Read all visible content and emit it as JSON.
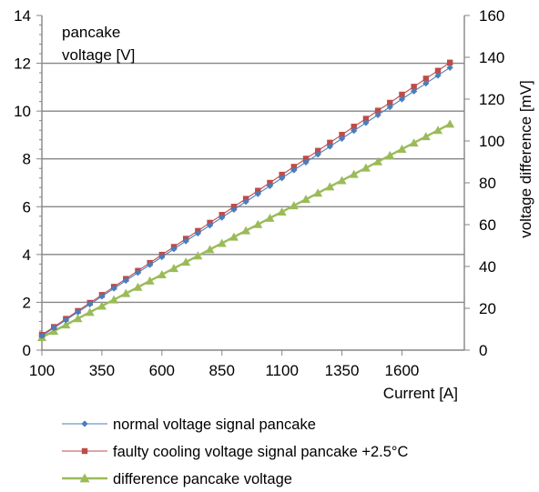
{
  "chart_data": {
    "type": "line",
    "x": [
      100,
      150,
      200,
      250,
      300,
      350,
      400,
      450,
      500,
      550,
      600,
      650,
      700,
      750,
      800,
      850,
      900,
      950,
      1000,
      1050,
      1100,
      1150,
      1200,
      1250,
      1300,
      1350,
      1400,
      1450,
      1500,
      1550,
      1600,
      1650,
      1700,
      1750,
      1800
    ],
    "ylabel_left_lines": [
      "pancake",
      "voltage [V]"
    ],
    "ylabel_right": "voltage difference [mV]",
    "xlabel": "Current [A]",
    "xlim": [
      100,
      1860
    ],
    "ylim_left": [
      0,
      14
    ],
    "ylim_right": [
      0,
      160
    ],
    "xticks": [
      "100",
      "350",
      "600",
      "850",
      "1100",
      "1350",
      "1600"
    ],
    "xtick_values": [
      100,
      350,
      600,
      850,
      1100,
      1350,
      1600
    ],
    "yticks_left": [
      "0",
      "2",
      "4",
      "6",
      "8",
      "10",
      "12",
      "14"
    ],
    "yticks_left_values": [
      0,
      2,
      4,
      6,
      8,
      10,
      12,
      14
    ],
    "yticks_right": [
      "0",
      "20",
      "40",
      "60",
      "80",
      "100",
      "120",
      "140",
      "160"
    ],
    "yticks_right_values": [
      0,
      20,
      40,
      60,
      80,
      100,
      120,
      140,
      160
    ],
    "grid": "horizontal",
    "legend_position": "bottom",
    "series": [
      {
        "name": "normal voltage signal pancake",
        "axis": "left",
        "color": "#4a7ebb",
        "marker": "diamond",
        "values": [
          0.6,
          0.93,
          1.26,
          1.59,
          1.92,
          2.25,
          2.58,
          2.91,
          3.24,
          3.57,
          3.9,
          4.23,
          4.56,
          4.89,
          5.22,
          5.55,
          5.88,
          6.21,
          6.54,
          6.87,
          7.2,
          7.53,
          7.86,
          8.19,
          8.52,
          8.85,
          9.18,
          9.51,
          9.84,
          10.17,
          10.5,
          10.83,
          11.16,
          11.49,
          11.82
        ]
      },
      {
        "name": "faulty cooling voltage signal pancake +2.5°C",
        "axis": "left",
        "color": "#be4b48",
        "marker": "square",
        "values": [
          0.64,
          0.97,
          1.31,
          1.64,
          1.98,
          2.31,
          2.65,
          2.98,
          3.32,
          3.65,
          3.99,
          4.32,
          4.66,
          4.99,
          5.33,
          5.66,
          6.0,
          6.33,
          6.67,
          7.0,
          7.34,
          7.67,
          8.01,
          8.34,
          8.68,
          9.01,
          9.35,
          9.68,
          10.02,
          10.35,
          10.69,
          11.02,
          11.36,
          11.69,
          12.03
        ]
      },
      {
        "name": "difference pancake voltage",
        "axis": "right",
        "color": "#9bbb59",
        "marker": "triangle",
        "values": [
          6.1,
          9.1,
          12.1,
          15.1,
          18.1,
          21.1,
          24.1,
          27.1,
          30.1,
          33.1,
          36.1,
          39.1,
          42.1,
          45.1,
          48.1,
          51.1,
          54.1,
          57.1,
          60.1,
          63.1,
          66.1,
          69.1,
          72.1,
          75.1,
          78.1,
          81.1,
          84.1,
          87.1,
          90.1,
          93.1,
          96.1,
          99.1,
          102.1,
          105.1,
          108.1
        ]
      }
    ]
  }
}
